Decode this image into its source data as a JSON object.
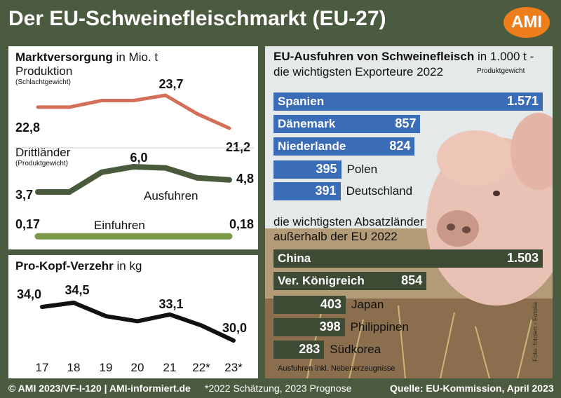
{
  "header": {
    "title": "Der EU-Schweinefleischmarkt (EU-27)",
    "logo": "AMI"
  },
  "left_top": {
    "heading_bold": "Marktversorgung",
    "heading_rest": " in Mio. t",
    "produktion_label": "Produktion",
    "produktion_note": "(Schlachtgewicht)",
    "drittlaender_label": "Drittländer",
    "drittlaender_note": "(Produktgewicht)",
    "ausfuhren_label": "Ausfuhren",
    "einfuhren_label": "Einfuhren"
  },
  "left_bottom": {
    "heading_bold": "Pro-Kopf-Verzehr",
    "heading_rest": " in kg"
  },
  "right": {
    "heading_bold": "EU-Ausfuhren von Schweinefleisch",
    "heading_rest": " in 1.000 t -",
    "subheading": "die wichtigsten Exporteure 2022",
    "unit_note": "Produktgewicht",
    "dest_heading_line1": "die wichtigsten Absatzländer",
    "dest_heading_line2": "außerhalb der EU 2022",
    "footnote": "Ausfuhren inkl. Nebenerzeugnisse",
    "photo_credit": "Foto: fotolen - Fotolia"
  },
  "footer": {
    "left": "© AMI 2023/VF-I-120 | AMI-informiert.de",
    "middle": "*2022 Schätzung, 2023 Prognose",
    "right": "Quelle: EU-Kommission, April 2023"
  },
  "colors": {
    "background": "#4b5b3f",
    "produktion": "#d4705a",
    "ausfuhren": "#4a5a3c",
    "einfuhren": "#7a9a4a",
    "verzehr": "#111111",
    "exporters": "#3a6cb8",
    "destinations": "#3d4a34",
    "logo": "#ee7d1c"
  },
  "chart_data": [
    {
      "type": "line",
      "title": "Marktversorgung",
      "x": [
        "17",
        "18",
        "19",
        "20",
        "21",
        "22*",
        "23*"
      ],
      "series": [
        {
          "name": "Produktion",
          "values": [
            22.8,
            22.8,
            23.3,
            23.3,
            23.7,
            22.3,
            21.2
          ],
          "labels": {
            "0": "22,8",
            "4": "23,7",
            "6": "21,2"
          }
        },
        {
          "name": "Ausfuhren",
          "values": [
            3.7,
            3.7,
            5.5,
            6.0,
            5.9,
            5.0,
            4.8
          ],
          "labels": {
            "0": "3,7",
            "3": "6,0",
            "6": "4,8"
          }
        },
        {
          "name": "Einfuhren",
          "values": [
            0.17,
            0.17,
            0.17,
            0.17,
            0.17,
            0.17,
            0.18
          ],
          "labels": {
            "0": "0,17",
            "6": "0,18"
          }
        }
      ]
    },
    {
      "type": "line",
      "title": "Pro-Kopf-Verzehr",
      "x": [
        "17",
        "18",
        "19",
        "20",
        "21",
        "22*",
        "23*"
      ],
      "series": [
        {
          "name": "Pro-Kopf-Verzehr",
          "values": [
            34.0,
            34.5,
            32.9,
            32.3,
            33.1,
            31.8,
            30.0
          ],
          "labels": {
            "0": "34,0",
            "1": "34,5",
            "4": "33,1",
            "6": "30,0"
          }
        }
      ]
    },
    {
      "type": "bar",
      "title": "die wichtigsten Exporteure 2022",
      "categories": [
        "Spanien",
        "Dänemark",
        "Niederlande",
        "Polen",
        "Deutschland"
      ],
      "values": [
        1571,
        857,
        824,
        395,
        391
      ],
      "value_labels": [
        "1.571",
        "857",
        "824",
        "395",
        "391"
      ]
    },
    {
      "type": "bar",
      "title": "die wichtigsten Absatzländer außerhalb der EU 2022",
      "categories": [
        "China",
        "Ver. Königreich",
        "Japan",
        "Philippinen",
        "Südkorea"
      ],
      "values": [
        1503,
        854,
        403,
        398,
        283
      ],
      "value_labels": [
        "1.503",
        "854",
        "403",
        "398",
        "283"
      ]
    }
  ]
}
